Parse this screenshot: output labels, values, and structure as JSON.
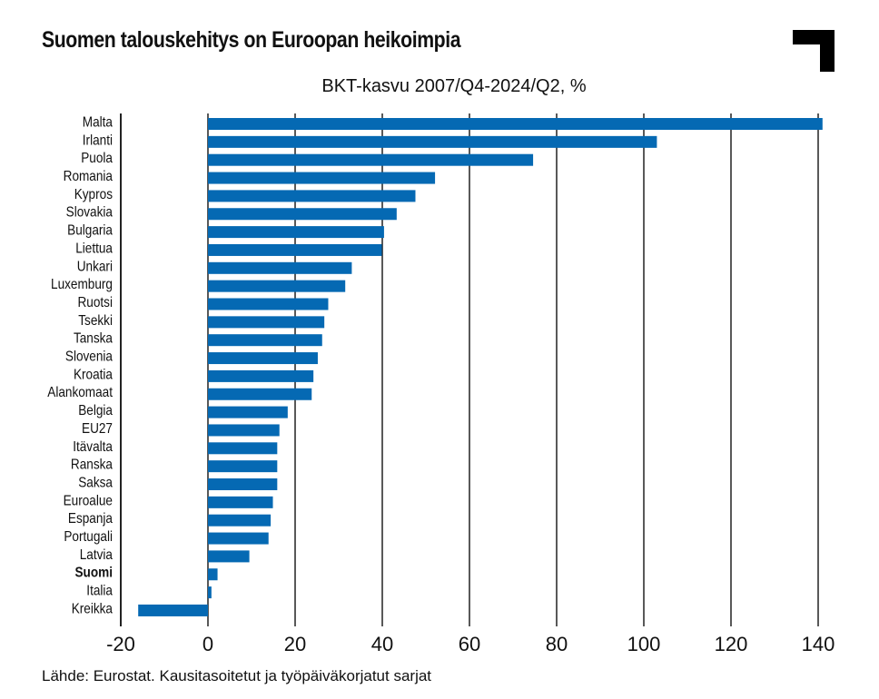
{
  "chart_data": {
    "type": "bar",
    "orientation": "horizontal",
    "title": "Suomen talouskehitys on Euroopan heikoimpia",
    "subtitle": "BKT-kasvu 2007/Q4-2024/Q2, %",
    "source": "Lähde: Eurostat. Kausitasoitetut ja työpäiväkorjatut sarjat",
    "categories": [
      "Malta",
      "Irlanti",
      "Puola",
      "Romania",
      "Kypros",
      "Slovakia",
      "Bulgaria",
      "Liettua",
      "Unkari",
      "Luxemburg",
      "Ruotsi",
      "Tsekki",
      "Tanska",
      "Slovenia",
      "Kroatia",
      "Alankomaat",
      "Belgia",
      "EU27",
      "Itävalta",
      "Ranska",
      "Saksa",
      "Euroalue",
      "Espanja",
      "Portugali",
      "Latvia",
      "Suomi",
      "Italia",
      "Kreikka"
    ],
    "values": [
      141,
      103,
      74.6,
      52.1,
      47.6,
      43.3,
      40.4,
      39.9,
      33.0,
      31.5,
      27.6,
      26.7,
      26.2,
      25.2,
      24.2,
      23.8,
      18.3,
      16.4,
      15.9,
      15.9,
      15.9,
      14.9,
      14.4,
      13.9,
      9.5,
      2.2,
      0.8,
      -16.0
    ],
    "highlight": "Suomi",
    "xlim": [
      -20,
      140
    ],
    "xticks": [
      -20,
      0,
      20,
      40,
      60,
      80,
      100,
      120,
      140
    ],
    "grid": true,
    "bar_color": "#0569b3"
  }
}
